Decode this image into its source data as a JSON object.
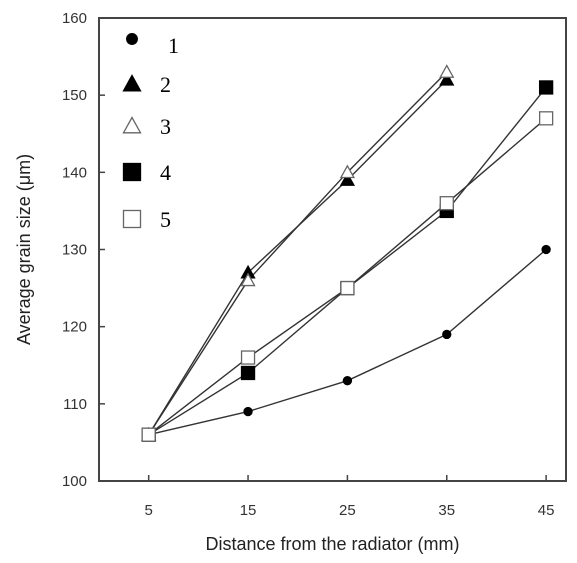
{
  "chart_data": {
    "type": "line",
    "xlabel": "Distance from the radiator (mm)",
    "ylabel": "Average grain size (μm)",
    "xlim": [
      0,
      47
    ],
    "ylim": [
      100,
      160
    ],
    "x_ticks": [
      "5",
      "15",
      "25",
      "35",
      "45"
    ],
    "y_ticks": [
      "100",
      "110",
      "120",
      "130",
      "140",
      "150",
      "160"
    ],
    "legend_position": "top-left",
    "grid": false,
    "series": [
      {
        "name": "1",
        "marker": "filled-circle",
        "x": [
          5,
          15,
          25,
          35,
          45
        ],
        "y": [
          106,
          109,
          113,
          119,
          130
        ]
      },
      {
        "name": "2",
        "marker": "filled-triangle",
        "x": [
          5,
          15,
          25,
          35
        ],
        "y": [
          106,
          127,
          139,
          152
        ]
      },
      {
        "name": "3",
        "marker": "open-triangle",
        "x": [
          5,
          15,
          25,
          35
        ],
        "y": [
          106,
          126,
          140,
          153
        ]
      },
      {
        "name": "4",
        "marker": "filled-square",
        "x": [
          5,
          15,
          25,
          35,
          45
        ],
        "y": [
          106,
          114,
          125,
          135,
          151
        ]
      },
      {
        "name": "5",
        "marker": "open-square",
        "x": [
          5,
          15,
          25,
          35,
          45
        ],
        "y": [
          106,
          116,
          125,
          136,
          147
        ]
      }
    ]
  }
}
